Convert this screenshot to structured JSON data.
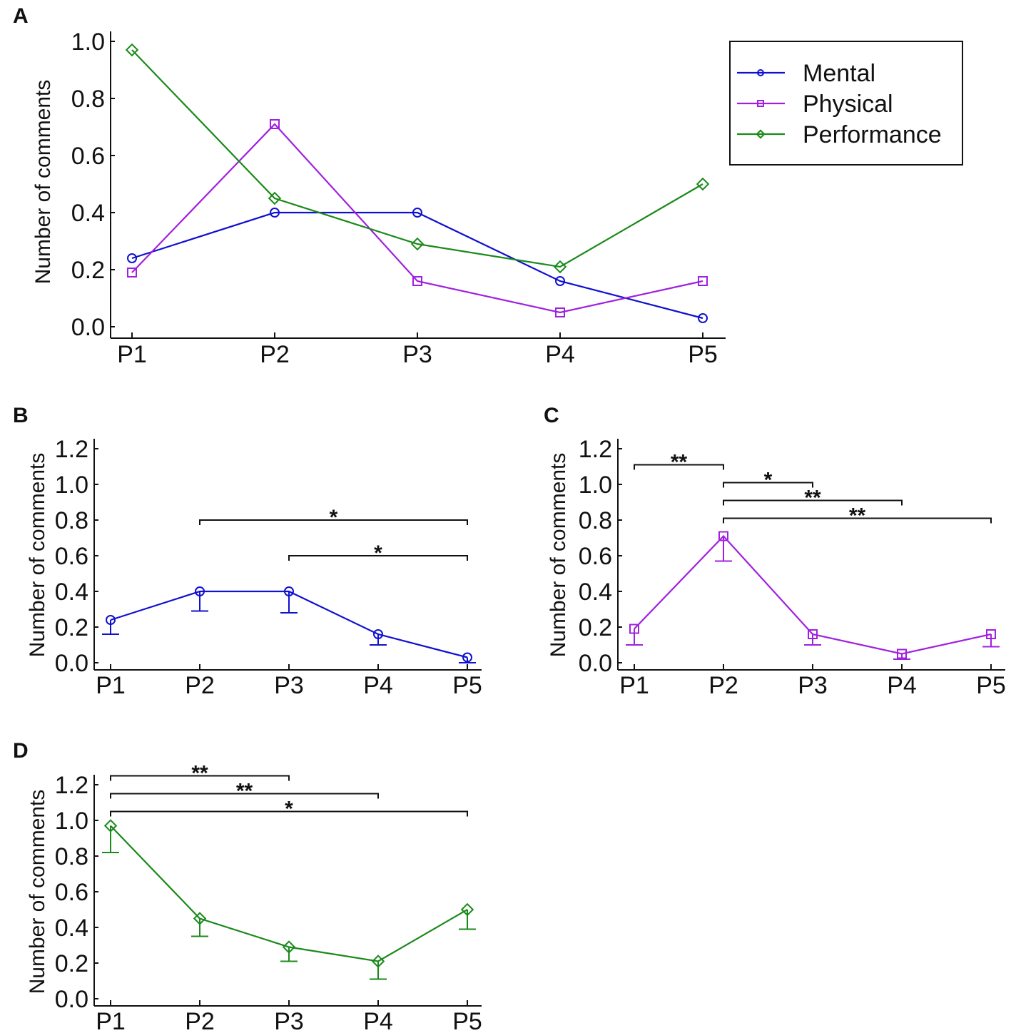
{
  "chart_data": [
    {
      "panel": "A",
      "type": "line",
      "categories": [
        "P1",
        "P2",
        "P3",
        "P4",
        "P5"
      ],
      "ylabel": "Number of comments",
      "xlabel": "",
      "ylim": [
        0.0,
        1.0
      ],
      "yticks": [
        "0.0",
        "0.2",
        "0.4",
        "0.6",
        "0.8",
        "1.0"
      ],
      "legend": "top-right",
      "series": [
        {
          "name": "Mental",
          "color": "#1010d0",
          "marker": "circle",
          "values": [
            0.24,
            0.4,
            0.4,
            0.16,
            0.03
          ]
        },
        {
          "name": "Physical",
          "color": "#a020e0",
          "marker": "square",
          "values": [
            0.19,
            0.71,
            0.16,
            0.05,
            0.16
          ]
        },
        {
          "name": "Performance",
          "color": "#1a8a1a",
          "marker": "diamond",
          "values": [
            0.97,
            0.45,
            0.29,
            0.21,
            0.5
          ]
        }
      ]
    },
    {
      "panel": "B",
      "type": "line",
      "categories": [
        "P1",
        "P2",
        "P3",
        "P4",
        "P5"
      ],
      "ylabel": "Number of comments",
      "ylim": [
        0.0,
        1.2
      ],
      "yticks": [
        "0.0",
        "0.2",
        "0.4",
        "0.6",
        "0.8",
        "1.0",
        "1.2"
      ],
      "series": [
        {
          "name": "Mental",
          "color": "#1010d0",
          "marker": "circle",
          "values": [
            0.24,
            0.4,
            0.4,
            0.16,
            0.03
          ],
          "error_low": [
            0.16,
            0.29,
            0.28,
            0.1,
            0.0
          ]
        }
      ],
      "significance": [
        {
          "from": "P2",
          "to": "P5",
          "label": "*",
          "y": 0.8
        },
        {
          "from": "P3",
          "to": "P5",
          "label": "*",
          "y": 0.6
        }
      ]
    },
    {
      "panel": "C",
      "type": "line",
      "categories": [
        "P1",
        "P2",
        "P3",
        "P4",
        "P5"
      ],
      "ylabel": "Number of comments",
      "ylim": [
        0.0,
        1.2
      ],
      "yticks": [
        "0.0",
        "0.2",
        "0.4",
        "0.6",
        "0.8",
        "1.0",
        "1.2"
      ],
      "series": [
        {
          "name": "Physical",
          "color": "#a020e0",
          "marker": "square",
          "values": [
            0.19,
            0.71,
            0.16,
            0.05,
            0.16
          ],
          "error_low": [
            0.1,
            0.57,
            0.1,
            0.02,
            0.09
          ]
        }
      ],
      "significance": [
        {
          "from": "P1",
          "to": "P2",
          "label": "**",
          "y": 1.11
        },
        {
          "from": "P2",
          "to": "P3",
          "label": "*",
          "y": 1.01
        },
        {
          "from": "P2",
          "to": "P4",
          "label": "**",
          "y": 0.91
        },
        {
          "from": "P2",
          "to": "P5",
          "label": "**",
          "y": 0.81
        }
      ]
    },
    {
      "panel": "D",
      "type": "line",
      "categories": [
        "P1",
        "P2",
        "P3",
        "P4",
        "P5"
      ],
      "ylabel": "Number of comments",
      "ylim": [
        0.0,
        1.2
      ],
      "yticks": [
        "0.0",
        "0.2",
        "0.4",
        "0.6",
        "0.8",
        "1.0",
        "1.2"
      ],
      "series": [
        {
          "name": "Performance",
          "color": "#1a8a1a",
          "marker": "diamond",
          "values": [
            0.97,
            0.45,
            0.29,
            0.21,
            0.5
          ],
          "error_low": [
            0.82,
            0.35,
            0.21,
            0.11,
            0.39
          ]
        }
      ],
      "significance": [
        {
          "from": "P1",
          "to": "P3",
          "label": "**",
          "y": 1.25
        },
        {
          "from": "P1",
          "to": "P4",
          "label": "**",
          "y": 1.15
        },
        {
          "from": "P1",
          "to": "P5",
          "label": "*",
          "y": 1.05
        }
      ]
    }
  ]
}
